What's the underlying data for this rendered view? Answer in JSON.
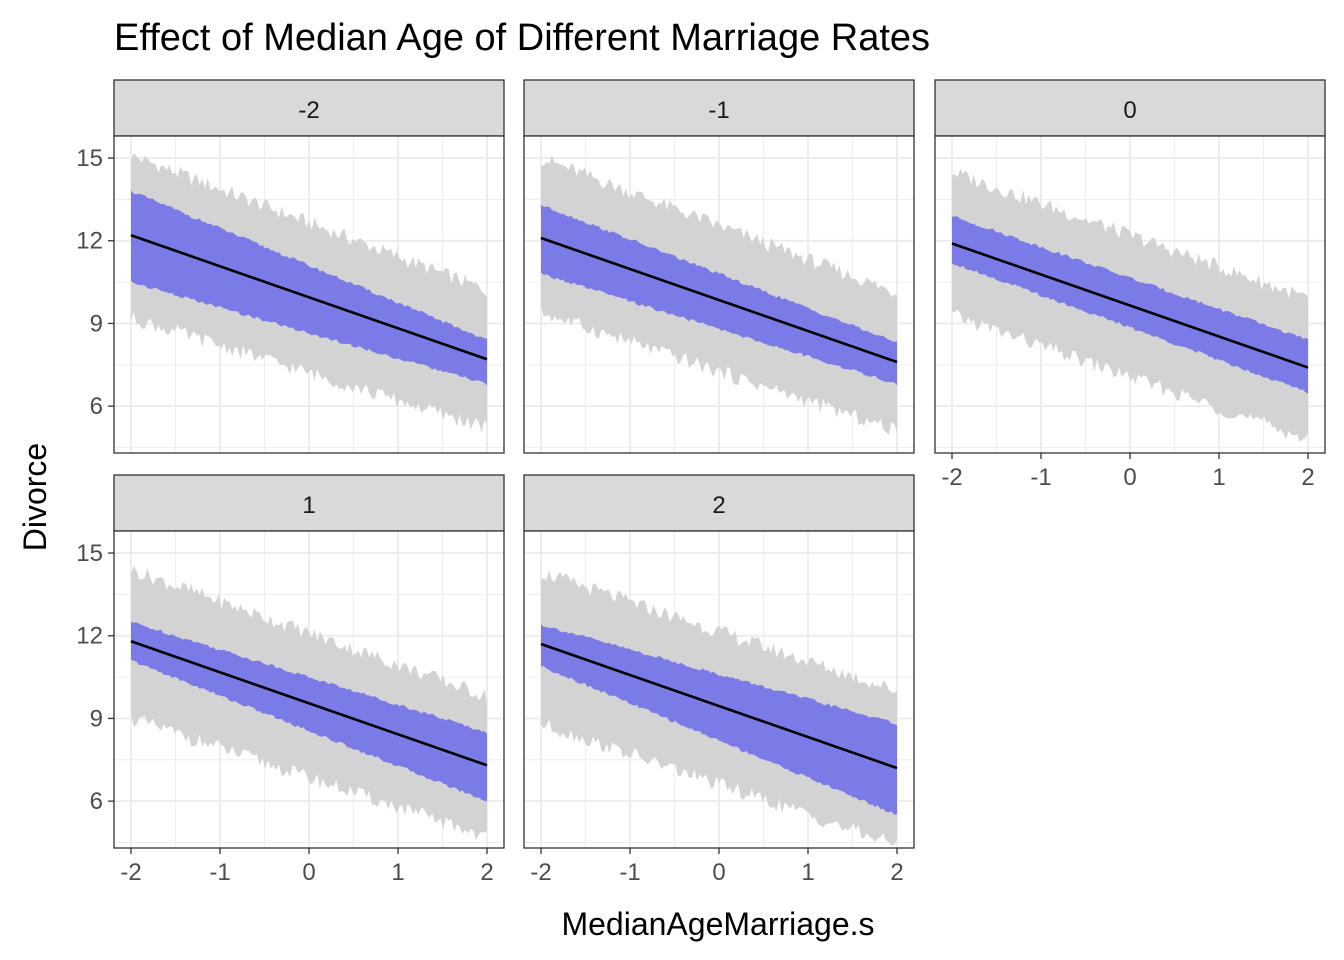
{
  "chart_data": {
    "type": "line",
    "title": "Effect of Median Age of Different Marriage Rates",
    "xlabel": "MedianAgeMarriage.s",
    "ylabel": "Divorce",
    "xlim": [
      -2,
      2
    ],
    "ylim": [
      4.3,
      15.8
    ],
    "x_ticks": [
      -2,
      -1,
      0,
      1,
      2
    ],
    "y_ticks": [
      6,
      9,
      12,
      15
    ],
    "grid": true,
    "colors": {
      "prediction_band": "#d3d3d3",
      "mean_band": "#7b7be8",
      "mean_line": "#000000",
      "strip_fill": "#d9d9d9",
      "panel_border": "#333333",
      "grid_major": "#ebebeb"
    },
    "facets": [
      {
        "label": "-2",
        "x": [
          -2,
          2
        ],
        "mean": [
          12.2,
          7.7
        ],
        "mean_band_lower": [
          10.5,
          6.8
        ],
        "mean_band_upper": [
          13.8,
          8.4
        ],
        "pred_lower": [
          9.2,
          5.2
        ],
        "pred_upper": [
          15.1,
          10.2
        ]
      },
      {
        "label": "-1",
        "x": [
          -2,
          2
        ],
        "mean": [
          12.1,
          7.6
        ],
        "mean_band_lower": [
          10.8,
          6.8
        ],
        "mean_band_upper": [
          13.3,
          8.3
        ],
        "pred_lower": [
          9.4,
          5.1
        ],
        "pred_upper": [
          15.0,
          10.1
        ]
      },
      {
        "label": "0",
        "x": [
          -2,
          2
        ],
        "mean": [
          11.9,
          7.4
        ],
        "mean_band_lower": [
          11.2,
          6.5
        ],
        "mean_band_upper": [
          12.9,
          8.4
        ],
        "pred_lower": [
          9.3,
          4.8
        ],
        "pred_upper": [
          14.5,
          9.9
        ]
      },
      {
        "label": "1",
        "x": [
          -2,
          2
        ],
        "mean": [
          11.8,
          7.3
        ],
        "mean_band_lower": [
          11.1,
          6.0
        ],
        "mean_band_upper": [
          12.5,
          8.5
        ],
        "pred_lower": [
          9.0,
          4.7
        ],
        "pred_upper": [
          14.4,
          9.8
        ]
      },
      {
        "label": "2",
        "x": [
          -2,
          2
        ],
        "mean": [
          11.7,
          7.2
        ],
        "mean_band_lower": [
          10.9,
          5.5
        ],
        "mean_band_upper": [
          12.4,
          8.8
        ],
        "pred_lower": [
          8.8,
          4.4
        ],
        "pred_upper": [
          14.3,
          10.0
        ]
      }
    ]
  }
}
